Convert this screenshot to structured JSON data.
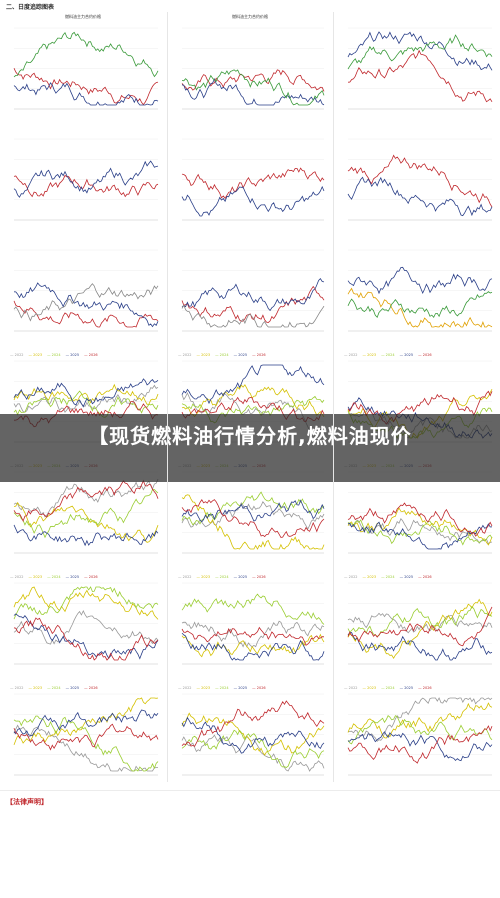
{
  "section": {
    "title": "二、日度追踪图表"
  },
  "headline": "【现货燃料油行情分析,燃料油现价",
  "panels": [
    {
      "title": "燃料油主力合约价格",
      "legend": [],
      "colors": [
        "#c0282d",
        "#2a3f88",
        "#3a9a3a"
      ]
    },
    {
      "title": "燃料油主力合约价格",
      "legend": [],
      "colors": [
        "#c0282d",
        "#2a3f88",
        "#3a9a3a"
      ]
    },
    {
      "title": "",
      "legend": [],
      "colors": [
        "#c0282d",
        "#2a3f88",
        "#3a9a3a"
      ]
    },
    {
      "title": "",
      "legend": [],
      "colors": [
        "#c0282d",
        "#2a3f88"
      ]
    },
    {
      "title": "",
      "legend": [],
      "colors": [
        "#c0282d",
        "#2a3f88"
      ]
    },
    {
      "title": "",
      "legend": [],
      "colors": [
        "#c0282d",
        "#2a3f88"
      ]
    },
    {
      "title": "",
      "legend": [],
      "colors": [
        "#c0282d",
        "#2a3f88",
        "#888888"
      ]
    },
    {
      "title": "",
      "legend": [],
      "colors": [
        "#c0282d",
        "#2a3f88",
        "#888888"
      ]
    },
    {
      "title": "",
      "legend": [],
      "colors": [
        "#e0a000",
        "#3a9a3a",
        "#2a3f88"
      ]
    },
    {
      "title": "",
      "legend": [
        "2022",
        "2023",
        "2024",
        "2025",
        "2026"
      ],
      "colors": [
        "#999999",
        "#d4c000",
        "#9acd32",
        "#2a3f88",
        "#c0282d"
      ]
    },
    {
      "title": "",
      "legend": [
        "2022",
        "2023",
        "2024",
        "2025",
        "2026"
      ],
      "colors": [
        "#999999",
        "#d4c000",
        "#9acd32",
        "#2a3f88",
        "#c0282d"
      ]
    },
    {
      "title": "",
      "legend": [
        "2022",
        "2023",
        "2024",
        "2025",
        "2026"
      ],
      "colors": [
        "#999999",
        "#d4c000",
        "#9acd32",
        "#2a3f88",
        "#c0282d"
      ]
    },
    {
      "title": "",
      "legend": [
        "2022",
        "2023",
        "2024",
        "2025",
        "2026"
      ],
      "colors": [
        "#999999",
        "#d4c000",
        "#9acd32",
        "#2a3f88",
        "#c0282d"
      ]
    },
    {
      "title": "",
      "legend": [
        "2022",
        "2023",
        "2024",
        "2025",
        "2026"
      ],
      "colors": [
        "#999999",
        "#d4c000",
        "#9acd32",
        "#2a3f88",
        "#c0282d"
      ]
    },
    {
      "title": "",
      "legend": [
        "2022",
        "2023",
        "2024",
        "2025",
        "2026"
      ],
      "colors": [
        "#999999",
        "#d4c000",
        "#9acd32",
        "#2a3f88",
        "#c0282d"
      ]
    },
    {
      "title": "",
      "legend": [
        "2022",
        "2023",
        "2024",
        "2025",
        "2026"
      ],
      "colors": [
        "#999999",
        "#d4c000",
        "#9acd32",
        "#2a3f88",
        "#c0282d"
      ]
    },
    {
      "title": "",
      "legend": [
        "2022",
        "2023",
        "2024",
        "2025",
        "2026"
      ],
      "colors": [
        "#999999",
        "#d4c000",
        "#9acd32",
        "#2a3f88",
        "#c0282d"
      ]
    },
    {
      "title": "",
      "legend": [
        "2022",
        "2023",
        "2024",
        "2025",
        "2026"
      ],
      "colors": [
        "#999999",
        "#d4c000",
        "#9acd32",
        "#2a3f88",
        "#c0282d"
      ]
    },
    {
      "title": "",
      "legend": [
        "2022",
        "2023",
        "2024",
        "2025",
        "2026"
      ],
      "colors": [
        "#999999",
        "#d4c000",
        "#9acd32",
        "#2a3f88",
        "#c0282d"
      ]
    },
    {
      "title": "",
      "legend": [
        "2022",
        "2023",
        "2024",
        "2025",
        "2026"
      ],
      "colors": [
        "#999999",
        "#d4c000",
        "#9acd32",
        "#2a3f88",
        "#c0282d"
      ]
    },
    {
      "title": "",
      "legend": [
        "2022",
        "2023",
        "2024",
        "2025",
        "2026"
      ],
      "colors": [
        "#999999",
        "#d4c000",
        "#9acd32",
        "#2a3f88",
        "#c0282d"
      ]
    }
  ],
  "source_text": "",
  "disclaimer": {
    "title": "【法律声明】",
    "lines": []
  }
}
